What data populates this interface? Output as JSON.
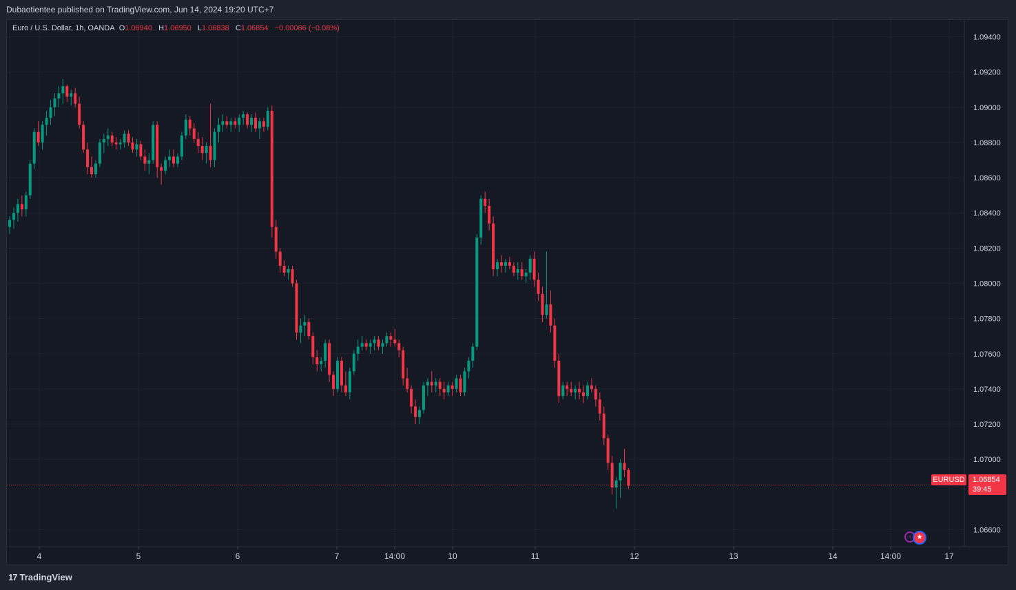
{
  "header": {
    "published": "Dubaotientee published on TradingView.com, Jun 14, 2024 19:20 UTC+7"
  },
  "legend": {
    "symbol": "Euro / U.S. Dollar, 1h, OANDA",
    "o_label": "O",
    "open": "1.06940",
    "h_label": "H",
    "high": "1.06950",
    "l_label": "L",
    "low": "1.06838",
    "c_label": "C",
    "close": "1.06854",
    "change": "−0.00086 (−0.08%)"
  },
  "price_tag": {
    "symbol": "EURUSD",
    "price": "1.06854",
    "countdown": "39:45"
  },
  "footer": {
    "brand": "TradingView",
    "logo_glyph": "17"
  },
  "colors": {
    "up": "#089981",
    "down": "#f23645",
    "background": "#151924",
    "grid": "#1f2330"
  },
  "icons": [
    "tradingview-logo-icon",
    "economic-event-icon",
    "us-flag-icon"
  ],
  "chart_data": {
    "type": "candlestick",
    "ylim": [
      1.065,
      1.095
    ],
    "y_ticks": [
      "1.09400",
      "1.09200",
      "1.09000",
      "1.08800",
      "1.08600",
      "1.08400",
      "1.08200",
      "1.08000",
      "1.07800",
      "1.07600",
      "1.07400",
      "1.07200",
      "1.07000",
      "1.06600"
    ],
    "x_ticks": [
      "4",
      "5",
      "6",
      "7",
      "14:00",
      "10",
      "11",
      "12",
      "13",
      "14",
      "14:00",
      "17"
    ],
    "last_price": 1.06854,
    "grid": true,
    "series": [
      {
        "values": [
          [
            1.0832,
            1.0838,
            1.0828,
            1.0836
          ],
          [
            1.0836,
            1.0843,
            1.0831,
            1.084
          ],
          [
            1.084,
            1.0848,
            1.0835,
            1.0845
          ],
          [
            1.0845,
            1.085,
            1.0838,
            1.0842
          ],
          [
            1.0842,
            1.0852,
            1.0838,
            1.085
          ],
          [
            1.085,
            1.087,
            1.0848,
            1.0868
          ],
          [
            1.0868,
            1.0888,
            1.0865,
            1.0886
          ],
          [
            1.0886,
            1.0892,
            1.0878,
            1.088
          ],
          [
            1.088,
            1.0892,
            1.0876,
            1.089
          ],
          [
            1.089,
            1.0898,
            1.0884,
            1.0894
          ],
          [
            1.0894,
            1.0904,
            1.089,
            1.09
          ],
          [
            1.09,
            1.0908,
            1.0895,
            1.0905
          ],
          [
            1.0905,
            1.0912,
            1.09,
            1.0908
          ],
          [
            1.0908,
            1.0916,
            1.0902,
            1.0912
          ],
          [
            1.0912,
            1.0913,
            1.0903,
            1.0906
          ],
          [
            1.0906,
            1.091,
            1.0901,
            1.0908
          ],
          [
            1.0908,
            1.0911,
            1.09,
            1.0902
          ],
          [
            1.0902,
            1.0906,
            1.0888,
            1.089
          ],
          [
            1.089,
            1.0892,
            1.0874,
            1.0876
          ],
          [
            1.0876,
            1.088,
            1.0862,
            1.0866
          ],
          [
            1.0866,
            1.0872,
            1.086,
            1.0862
          ],
          [
            1.0862,
            1.087,
            1.086,
            1.0868
          ],
          [
            1.0868,
            1.0882,
            1.0866,
            1.088
          ],
          [
            1.088,
            1.0885,
            1.0874,
            1.0882
          ],
          [
            1.0882,
            1.0888,
            1.0878,
            1.0884
          ],
          [
            1.0884,
            1.0886,
            1.0878,
            1.088
          ],
          [
            1.088,
            1.0883,
            1.0876,
            1.0879
          ],
          [
            1.0879,
            1.0882,
            1.0876,
            1.088
          ],
          [
            1.088,
            1.0887,
            1.0877,
            1.0885
          ],
          [
            1.0885,
            1.0887,
            1.0878,
            1.088
          ],
          [
            1.088,
            1.0883,
            1.0874,
            1.0876
          ],
          [
            1.0876,
            1.0882,
            1.0872,
            1.0879
          ],
          [
            1.0879,
            1.0881,
            1.087,
            1.0872
          ],
          [
            1.0872,
            1.0876,
            1.0864,
            1.0868
          ],
          [
            1.0868,
            1.0874,
            1.0862,
            1.087
          ],
          [
            1.087,
            1.0892,
            1.0868,
            1.089
          ],
          [
            1.089,
            1.0892,
            1.086,
            1.0866
          ],
          [
            1.0866,
            1.0868,
            1.0856,
            1.0864
          ],
          [
            1.0864,
            1.0872,
            1.0862,
            1.087
          ],
          [
            1.087,
            1.0876,
            1.0866,
            1.0872
          ],
          [
            1.0872,
            1.0876,
            1.0866,
            1.0868
          ],
          [
            1.0868,
            1.0874,
            1.0866,
            1.0872
          ],
          [
            1.0872,
            1.0886,
            1.087,
            1.0884
          ],
          [
            1.0884,
            1.0896,
            1.0882,
            1.0893
          ],
          [
            1.0893,
            1.0895,
            1.0884,
            1.0888
          ],
          [
            1.0888,
            1.0891,
            1.088,
            1.0882
          ],
          [
            1.0882,
            1.0886,
            1.0874,
            1.0878
          ],
          [
            1.0878,
            1.0883,
            1.087,
            1.0874
          ],
          [
            1.0874,
            1.088,
            1.0868,
            1.0878
          ],
          [
            1.0878,
            1.0902,
            1.0866,
            1.087
          ],
          [
            1.087,
            1.0888,
            1.0866,
            1.0886
          ],
          [
            1.0886,
            1.0894,
            1.088,
            1.089
          ],
          [
            1.089,
            1.0896,
            1.0886,
            1.0892
          ],
          [
            1.0892,
            1.0895,
            1.0888,
            1.089
          ],
          [
            1.089,
            1.0894,
            1.0886,
            1.0892
          ],
          [
            1.0892,
            1.0894,
            1.0888,
            1.089
          ],
          [
            1.089,
            1.0896,
            1.0886,
            1.0894
          ],
          [
            1.0894,
            1.0898,
            1.089,
            1.0896
          ],
          [
            1.0896,
            1.0897,
            1.0888,
            1.089
          ],
          [
            1.089,
            1.0896,
            1.0886,
            1.0894
          ],
          [
            1.0894,
            1.0897,
            1.0886,
            1.0888
          ],
          [
            1.0888,
            1.0894,
            1.0882,
            1.0892
          ],
          [
            1.0892,
            1.0894,
            1.0886,
            1.0889
          ],
          [
            1.0889,
            1.09,
            1.0887,
            1.0898
          ],
          [
            1.0898,
            1.0901,
            1.0826,
            1.0832
          ],
          [
            1.0832,
            1.0836,
            1.0814,
            1.0818
          ],
          [
            1.0818,
            1.082,
            1.0806,
            1.081
          ],
          [
            1.081,
            1.0813,
            1.0804,
            1.0806
          ],
          [
            1.0806,
            1.081,
            1.0802,
            1.0808
          ],
          [
            1.0808,
            1.081,
            1.0798,
            1.08
          ],
          [
            1.08,
            1.0802,
            1.0768,
            1.0772
          ],
          [
            1.0772,
            1.078,
            1.0766,
            1.0776
          ],
          [
            1.0776,
            1.0782,
            1.077,
            1.0778
          ],
          [
            1.0778,
            1.078,
            1.0768,
            1.077
          ],
          [
            1.077,
            1.0772,
            1.0754,
            1.0758
          ],
          [
            1.0758,
            1.0762,
            1.075,
            1.0754
          ],
          [
            1.0754,
            1.0758,
            1.075,
            1.0756
          ],
          [
            1.0756,
            1.0768,
            1.0752,
            1.0766
          ],
          [
            1.0766,
            1.0768,
            1.0744,
            1.0748
          ],
          [
            1.0748,
            1.075,
            1.0736,
            1.074
          ],
          [
            1.074,
            1.0758,
            1.0738,
            1.0756
          ],
          [
            1.0756,
            1.0758,
            1.0738,
            1.0742
          ],
          [
            1.0742,
            1.075,
            1.0736,
            1.0738
          ],
          [
            1.0738,
            1.0752,
            1.0734,
            1.075
          ],
          [
            1.075,
            1.0762,
            1.0748,
            1.076
          ],
          [
            1.076,
            1.0768,
            1.0756,
            1.0764
          ],
          [
            1.0764,
            1.077,
            1.0762,
            1.0766
          ],
          [
            1.0766,
            1.0768,
            1.0762,
            1.0764
          ],
          [
            1.0764,
            1.0768,
            1.076,
            1.0766
          ],
          [
            1.0766,
            1.077,
            1.0762,
            1.0768
          ],
          [
            1.0768,
            1.077,
            1.0762,
            1.0764
          ],
          [
            1.0764,
            1.0768,
            1.076,
            1.0766
          ],
          [
            1.0766,
            1.0772,
            1.0764,
            1.077
          ],
          [
            1.077,
            1.0772,
            1.0764,
            1.0768
          ],
          [
            1.0768,
            1.0774,
            1.0764,
            1.0766
          ],
          [
            1.0766,
            1.0768,
            1.0758,
            1.0762
          ],
          [
            1.0762,
            1.0764,
            1.0742,
            1.0746
          ],
          [
            1.0746,
            1.0752,
            1.0738,
            1.074
          ],
          [
            1.074,
            1.0742,
            1.0726,
            1.073
          ],
          [
            1.073,
            1.0734,
            1.072,
            1.0724
          ],
          [
            1.0724,
            1.073,
            1.072,
            1.0728
          ],
          [
            1.0728,
            1.0744,
            1.0726,
            1.0742
          ],
          [
            1.0742,
            1.0746,
            1.0736,
            1.0744
          ],
          [
            1.0744,
            1.075,
            1.0738,
            1.0742
          ],
          [
            1.0742,
            1.0746,
            1.0738,
            1.0744
          ],
          [
            1.0744,
            1.0746,
            1.0736,
            1.074
          ],
          [
            1.074,
            1.0744,
            1.0734,
            1.0738
          ],
          [
            1.0738,
            1.0744,
            1.0736,
            1.0742
          ],
          [
            1.0742,
            1.0744,
            1.0736,
            1.074
          ],
          [
            1.074,
            1.0748,
            1.0738,
            1.0746
          ],
          [
            1.0746,
            1.0748,
            1.0736,
            1.0738
          ],
          [
            1.0738,
            1.0752,
            1.0736,
            1.075
          ],
          [
            1.075,
            1.0758,
            1.0746,
            1.0756
          ],
          [
            1.0756,
            1.0766,
            1.0752,
            1.0764
          ],
          [
            1.0764,
            1.0828,
            1.0762,
            1.0826
          ],
          [
            1.0826,
            1.085,
            1.0822,
            1.0848
          ],
          [
            1.0848,
            1.0852,
            1.084,
            1.0844
          ],
          [
            1.0844,
            1.0848,
            1.083,
            1.0834
          ],
          [
            1.0834,
            1.0838,
            1.0804,
            1.0808
          ],
          [
            1.0808,
            1.0814,
            1.0804,
            1.0812
          ],
          [
            1.0812,
            1.0816,
            1.0806,
            1.081
          ],
          [
            1.081,
            1.0814,
            1.0806,
            1.0812
          ],
          [
            1.0812,
            1.0815,
            1.0808,
            1.081
          ],
          [
            1.081,
            1.0812,
            1.0804,
            1.0806
          ],
          [
            1.0806,
            1.0812,
            1.0802,
            1.0808
          ],
          [
            1.0808,
            1.0812,
            1.0802,
            1.0804
          ],
          [
            1.0804,
            1.0808,
            1.08,
            1.0806
          ],
          [
            1.0806,
            1.0816,
            1.0802,
            1.0814
          ],
          [
            1.0814,
            1.0818,
            1.0798,
            1.0802
          ],
          [
            1.0802,
            1.0806,
            1.079,
            1.0794
          ],
          [
            1.0794,
            1.0798,
            1.0778,
            1.0782
          ],
          [
            1.0782,
            1.0818,
            1.078,
            1.0788
          ],
          [
            1.0788,
            1.0796,
            1.0772,
            1.0776
          ],
          [
            1.0776,
            1.078,
            1.0752,
            1.0756
          ],
          [
            1.0756,
            1.076,
            1.0732,
            1.0736
          ],
          [
            1.0736,
            1.0744,
            1.0734,
            1.0742
          ],
          [
            1.0742,
            1.0744,
            1.0736,
            1.074
          ],
          [
            1.074,
            1.0744,
            1.0736,
            1.0738
          ],
          [
            1.0738,
            1.0742,
            1.0734,
            1.074
          ],
          [
            1.074,
            1.0744,
            1.0734,
            1.0738
          ],
          [
            1.0738,
            1.0742,
            1.0732,
            1.0736
          ],
          [
            1.0736,
            1.0744,
            1.0734,
            1.0742
          ],
          [
            1.0742,
            1.0746,
            1.0738,
            1.074
          ],
          [
            1.074,
            1.0742,
            1.073,
            1.0734
          ],
          [
            1.0734,
            1.0738,
            1.0722,
            1.0726
          ],
          [
            1.0726,
            1.073,
            1.0708,
            1.0712
          ],
          [
            1.0712,
            1.0714,
            1.0694,
            1.0698
          ],
          [
            1.0698,
            1.0702,
            1.068,
            1.0684
          ],
          [
            1.0684,
            1.069,
            1.0672,
            1.0688
          ],
          [
            1.0688,
            1.07,
            1.0678,
            1.0698
          ],
          [
            1.0698,
            1.0706,
            1.069,
            1.0694
          ],
          [
            1.0694,
            1.0695,
            1.0683,
            1.0685
          ]
        ]
      }
    ]
  }
}
